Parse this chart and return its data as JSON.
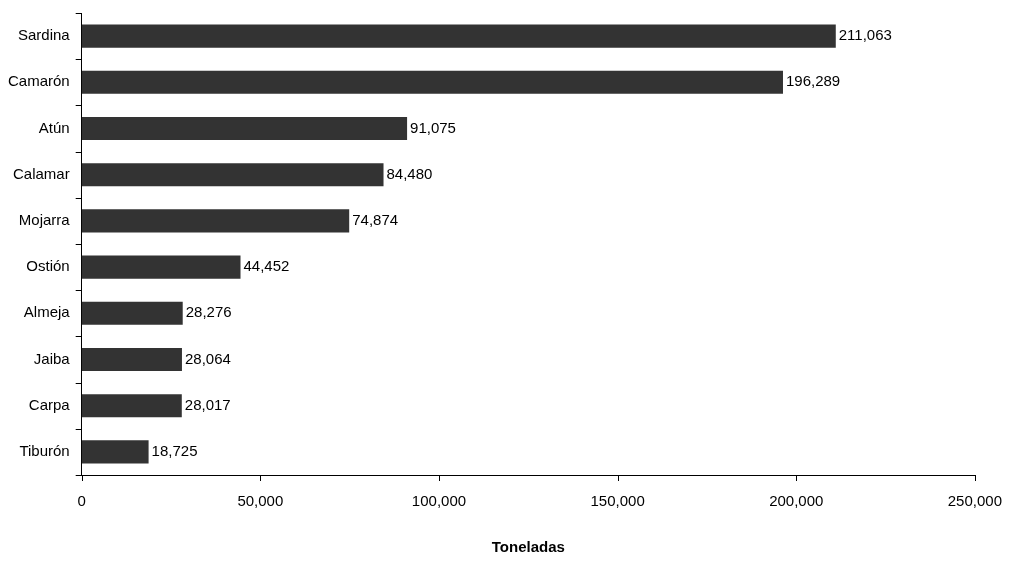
{
  "chart_data": {
    "type": "bar",
    "orientation": "horizontal",
    "xlabel": "Toneladas",
    "categories": [
      "Sardina",
      "Camarón",
      "Atún",
      "Calamar",
      "Mojarra",
      "Ostión",
      "Almeja",
      "Jaiba",
      "Carpa",
      "Tiburón"
    ],
    "values": [
      211063,
      196289,
      91075,
      84480,
      74874,
      44452,
      28276,
      28064,
      28017,
      18725
    ],
    "color": "#333333",
    "xlim": [
      0,
      250000
    ],
    "xticks": [
      0,
      {
        "value": 50000,
        "label": "50,000"
      },
      {
        "value": 100000,
        "label": "100,000"
      },
      {
        "value": 150000,
        "label": "150,000"
      },
      {
        "value": 200000,
        "label": "200,000"
      },
      {
        "value": 250000,
        "label": "250,000"
      }
    ],
    "value_labels": [
      "211,063",
      "196,289",
      "91,075",
      "84,480",
      "74,874",
      "44,452",
      "28,276",
      "28,064",
      "28,017",
      "18,725"
    ],
    "data_labels": true,
    "grid": false,
    "legend": false
  }
}
